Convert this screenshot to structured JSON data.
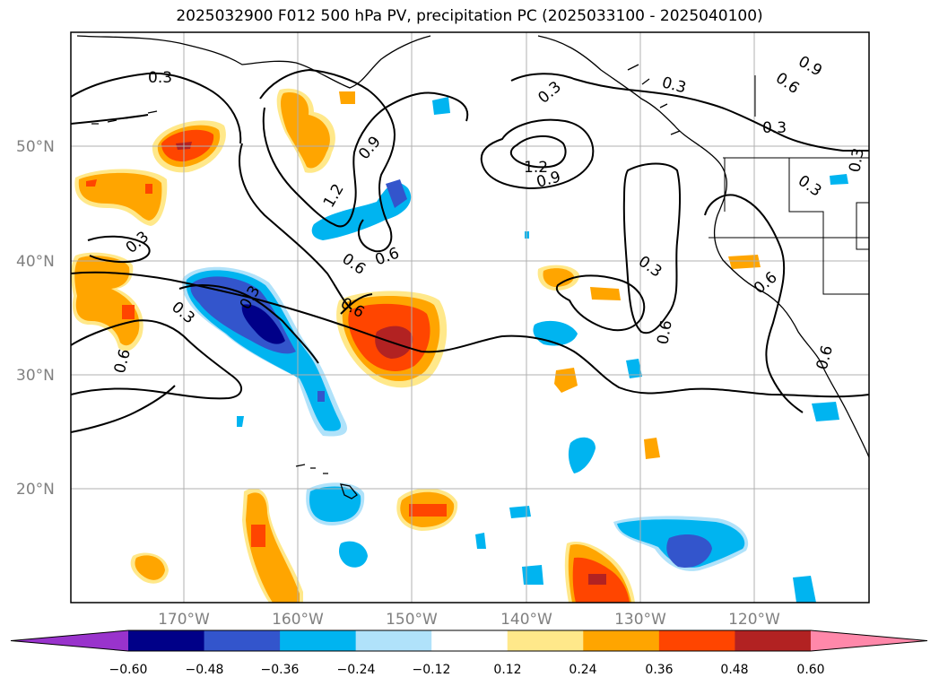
{
  "title": "2025032900 F012 500 hPa PV, precipitation PC (2025033100 - 2025040100)",
  "latitude_labels": [
    "50°N",
    "40°N",
    "30°N",
    "20°N"
  ],
  "longitude_labels": [
    "170°W",
    "160°W",
    "150°W",
    "140°W",
    "130°W",
    "120°W"
  ],
  "contour_labels": [
    "0.3",
    "0.9",
    "0.6",
    "1.2",
    "0.3",
    "0.3",
    "0.6",
    "0.9",
    "1.2",
    "0.9",
    "0.3",
    "0.3",
    "0.6",
    "0.3",
    "0.6",
    "0.3",
    "0.6",
    "0.3",
    "0.6",
    "0.3",
    "0.6",
    "0.6",
    "0.3"
  ],
  "colorbar": {
    "tick_labels": [
      "−0.60",
      "−0.48",
      "−0.36",
      "−0.24",
      "−0.12",
      "0.12",
      "0.24",
      "0.36",
      "0.48",
      "0.60"
    ],
    "colors": [
      "#9933cc",
      "#000088",
      "#3355cc",
      "#00b4f0",
      "#b0e2fa",
      "#ffffff",
      "#ffe88a",
      "#ffa500",
      "#ff4500",
      "#b22222",
      "#ff88aa"
    ]
  },
  "colors": {
    "grid": "#b0b0b0",
    "coast": "#000000",
    "contour": "#000000",
    "tick_text": "#808080"
  }
}
